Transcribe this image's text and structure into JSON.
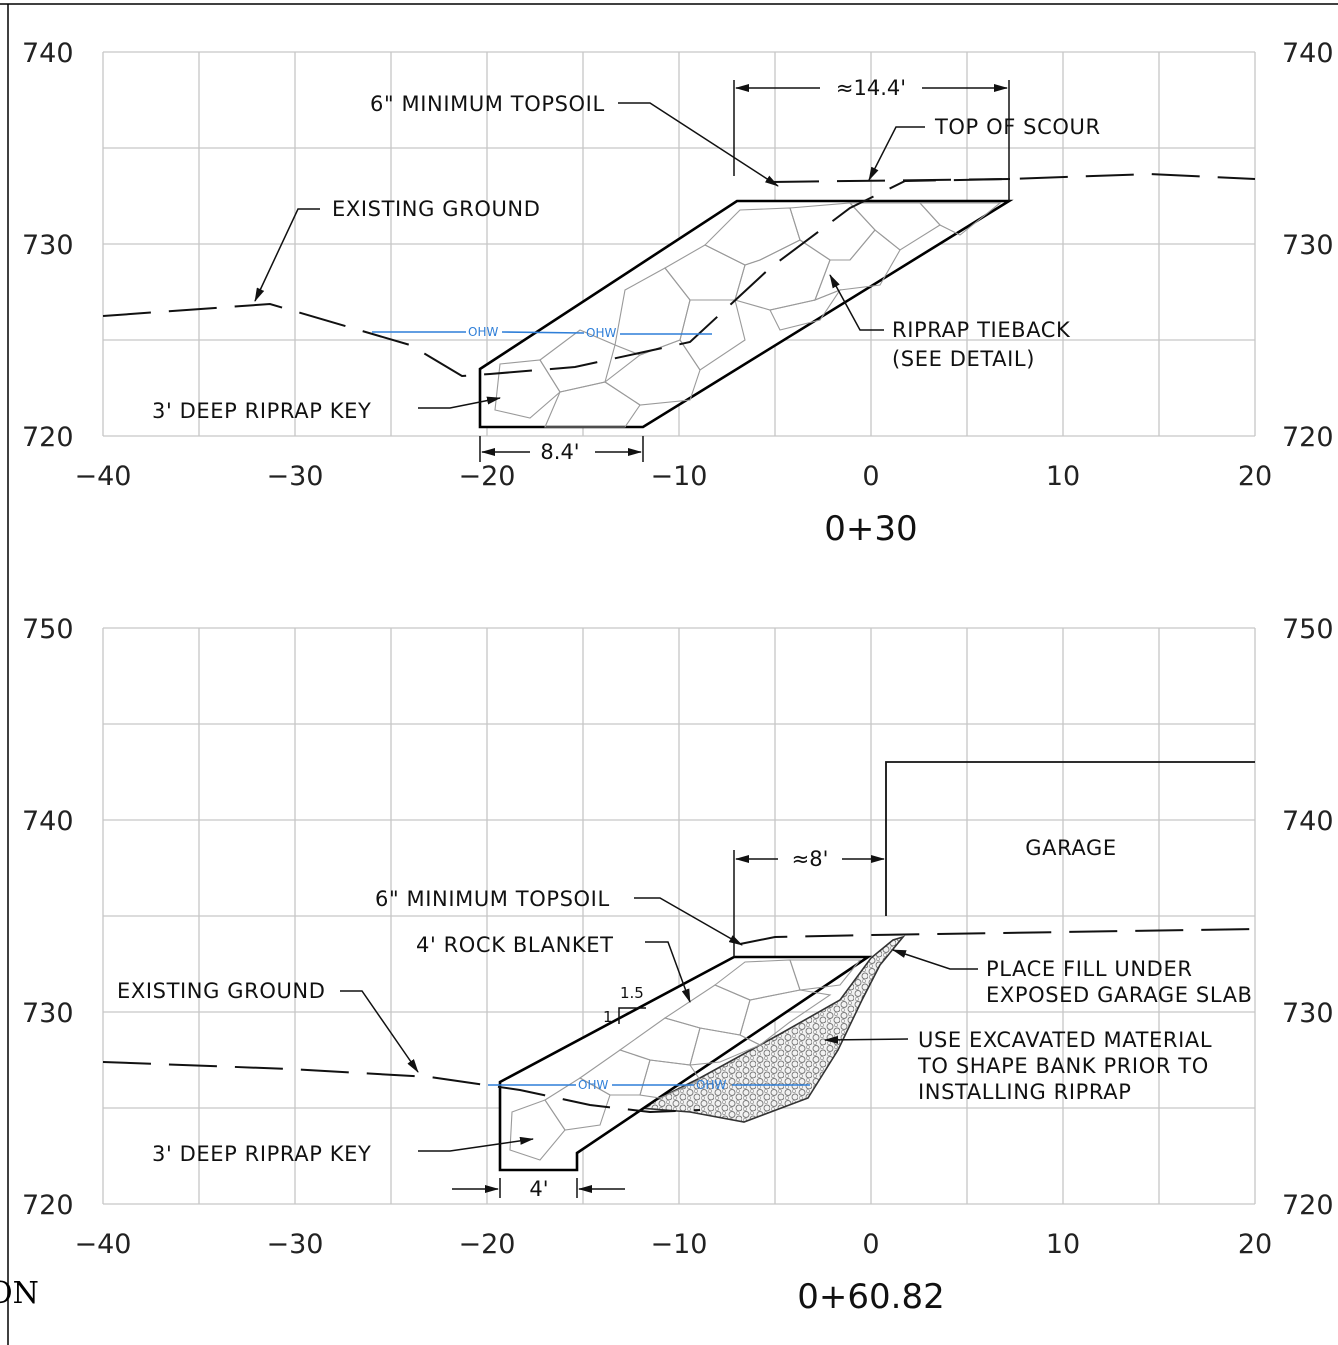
{
  "sections": [
    {
      "station": "0+30",
      "y_ticks": [
        {
          "value": 740,
          "label": "740"
        },
        {
          "value": 730,
          "label": "730"
        },
        {
          "value": 720,
          "label": "720"
        }
      ],
      "x_ticks": [
        {
          "value": -40,
          "label": "−40"
        },
        {
          "value": -30,
          "label": "−30"
        },
        {
          "value": -20,
          "label": "−20"
        },
        {
          "value": -10,
          "label": "−10"
        },
        {
          "value": 0,
          "label": "0"
        },
        {
          "value": 10,
          "label": "10"
        },
        {
          "value": 20,
          "label": "20"
        }
      ],
      "callouts": {
        "topsoil": "6\" MINIMUM TOPSOIL",
        "top_of_scour": "TOP OF SCOUR",
        "existing_ground": "EXISTING GROUND",
        "riprap_tieback_1": "RIPRAP TIEBACK",
        "riprap_tieback_2": "(SEE DETAIL)",
        "riprap_key": "3' DEEP RIPRAP KEY",
        "ohw_1": "OHW",
        "ohw_2": "OHW"
      },
      "dimensions": {
        "top_width": "≈14.4'",
        "key_width": "8.4'"
      }
    },
    {
      "station": "0+60.82",
      "y_ticks": [
        {
          "value": 750,
          "label": "750"
        },
        {
          "value": 740,
          "label": "740"
        },
        {
          "value": 730,
          "label": "730"
        },
        {
          "value": 720,
          "label": "720"
        }
      ],
      "x_ticks": [
        {
          "value": -40,
          "label": "−40"
        },
        {
          "value": -30,
          "label": "−30"
        },
        {
          "value": -20,
          "label": "−20"
        },
        {
          "value": -10,
          "label": "−10"
        },
        {
          "value": 0,
          "label": "0"
        },
        {
          "value": 10,
          "label": "10"
        },
        {
          "value": 20,
          "label": "20"
        }
      ],
      "callouts": {
        "garage": "GARAGE",
        "topsoil": "6\" MINIMUM TOPSOIL",
        "rock_blanket": "4' ROCK BLANKET",
        "existing_ground": "EXISTING GROUND",
        "fill_1": "PLACE FILL UNDER",
        "fill_2": "EXPOSED GARAGE SLAB",
        "excavated_1": "USE EXCAVATED MATERIAL",
        "excavated_2": "TO SHAPE BANK PRIOR TO",
        "excavated_3": "INSTALLING RIPRAP",
        "riprap_key": "3' DEEP RIPRAP KEY",
        "slope_h": "1.5",
        "slope_v": "1",
        "ohw_1": "OHW",
        "ohw_2": "OHW"
      },
      "dimensions": {
        "to_garage": "≈8'",
        "key_width": "4'"
      }
    }
  ],
  "corner_text": "ON"
}
